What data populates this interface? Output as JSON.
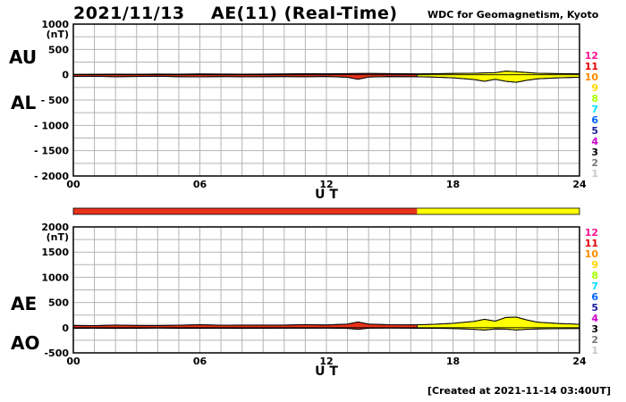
{
  "header": {
    "date": "2021/11/13",
    "title": "AE(11) (Real-Time)",
    "credit": "WDC for Geomagnetism, Kyoto",
    "created": "[Created at 2021-11-14 03:40UT]"
  },
  "colors": {
    "realtime_red": "#e8321a",
    "provisional_yellow": "#ffff00",
    "grid": "#b4b4b4",
    "station_count_colors": {
      "12": "#ff1493",
      "11": "#e00000",
      "10": "#ff8c00",
      "9": "#ffd700",
      "8": "#aaff00",
      "7": "#00e0ff",
      "6": "#0064ff",
      "5": "#1e1ea0",
      "4": "#cc00cc",
      "3": "#000000",
      "2": "#787878",
      "1": "#c8c8c8"
    }
  },
  "station_scale": [
    "12",
    "11",
    "10",
    "9",
    "8",
    "7",
    "6",
    "5",
    "4",
    "3",
    "2",
    "1"
  ],
  "chart_data": [
    {
      "type": "area",
      "panel": "AU/AL",
      "labels": {
        "upper": "AU",
        "lower": "AL"
      },
      "xlabel": "U T",
      "ylabel": "(nT)",
      "xlim": [
        0,
        24
      ],
      "ylim": [
        -2000,
        1000
      ],
      "xticks": [
        "00",
        "06",
        "12",
        "18",
        "24"
      ],
      "yticks": [
        "1000",
        "500",
        "0",
        "- 500",
        "- 1000",
        "- 1500",
        "- 2000"
      ],
      "ytick_values": [
        1000,
        500,
        0,
        -500,
        -1000,
        -1500,
        -2000
      ],
      "grid": true,
      "color_change_hour": 16.3,
      "series": [
        {
          "name": "AU",
          "x": [
            0,
            1,
            2,
            3,
            4,
            5,
            6,
            7,
            8,
            9,
            10,
            11,
            12,
            13,
            13.5,
            14,
            15,
            16,
            16.3,
            17,
            18,
            19,
            19.5,
            20,
            20.5,
            21,
            21.5,
            22,
            23,
            24
          ],
          "values": [
            8,
            10,
            12,
            10,
            14,
            12,
            16,
            14,
            12,
            14,
            16,
            20,
            18,
            22,
            24,
            26,
            22,
            18,
            16,
            20,
            26,
            30,
            36,
            40,
            72,
            60,
            44,
            30,
            22,
            18
          ]
        },
        {
          "name": "AL",
          "x": [
            0,
            1,
            2,
            3,
            4,
            5,
            6,
            7,
            8,
            9,
            10,
            11,
            12,
            13,
            13.5,
            14,
            15,
            16,
            16.3,
            17,
            18,
            19,
            19.5,
            20,
            20.5,
            21,
            21.5,
            22,
            23,
            24
          ],
          "values": [
            -35,
            -30,
            -40,
            -35,
            -30,
            -38,
            -42,
            -36,
            -40,
            -38,
            -36,
            -40,
            -35,
            -50,
            -90,
            -45,
            -36,
            -38,
            -40,
            -45,
            -60,
            -95,
            -130,
            -90,
            -130,
            -150,
            -110,
            -80,
            -60,
            -50
          ]
        }
      ]
    },
    {
      "type": "area",
      "panel": "AE/AO",
      "labels": {
        "upper": "AE",
        "lower": "AO"
      },
      "xlabel": "U T",
      "ylabel": "(nT)",
      "xlim": [
        0,
        24
      ],
      "ylim": [
        -500,
        2000
      ],
      "xticks": [
        "00",
        "06",
        "12",
        "18",
        "24"
      ],
      "yticks": [
        "2000",
        "1500",
        "1000",
        "500",
        "0",
        "-500"
      ],
      "ytick_values": [
        2000,
        1500,
        1000,
        500,
        0,
        -500
      ],
      "grid": true,
      "color_change_hour": 16.3,
      "series": [
        {
          "name": "AE",
          "x": [
            0,
            1,
            2,
            3,
            4,
            5,
            6,
            7,
            8,
            9,
            10,
            11,
            12,
            13,
            13.5,
            14,
            15,
            16,
            16.3,
            17,
            18,
            19,
            19.5,
            20,
            20.5,
            21,
            21.5,
            22,
            23,
            24
          ],
          "values": [
            45,
            40,
            52,
            45,
            44,
            50,
            58,
            50,
            52,
            52,
            52,
            60,
            53,
            72,
            114,
            71,
            58,
            56,
            56,
            65,
            86,
            125,
            166,
            130,
            202,
            210,
            154,
            110,
            82,
            68
          ]
        },
        {
          "name": "AO",
          "x": [
            0,
            1,
            2,
            3,
            4,
            5,
            6,
            7,
            8,
            9,
            10,
            11,
            12,
            13,
            13.5,
            14,
            15,
            16,
            16.3,
            17,
            18,
            19,
            19.5,
            20,
            20.5,
            21,
            21.5,
            22,
            23,
            24
          ],
          "values": [
            -14,
            -10,
            -14,
            -12,
            -8,
            -13,
            -13,
            -11,
            -14,
            -12,
            -10,
            -10,
            -9,
            -14,
            -33,
            -10,
            -7,
            -10,
            -12,
            -13,
            -17,
            -33,
            -47,
            -25,
            -29,
            -45,
            -33,
            -25,
            -19,
            -16
          ]
        }
      ]
    }
  ]
}
